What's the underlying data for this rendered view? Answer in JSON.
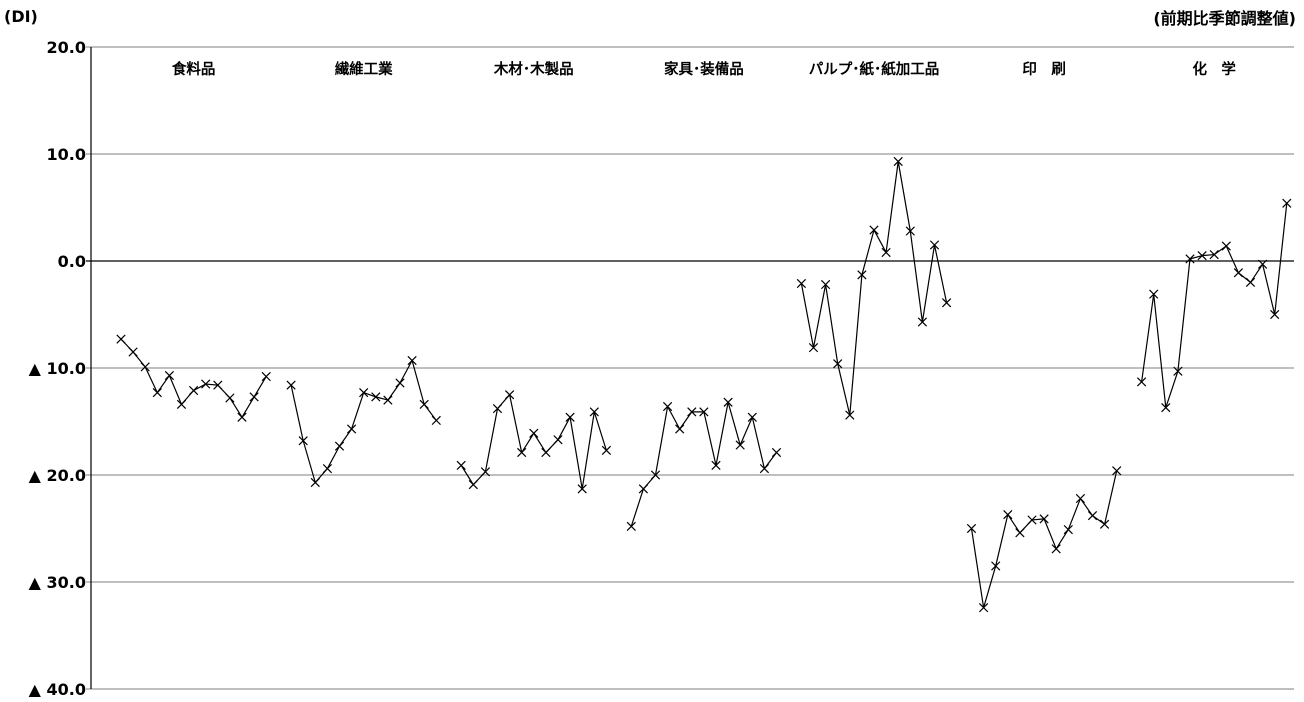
{
  "chart_data": {
    "type": "line",
    "y_unit": "(DI)",
    "note": "(前期比季節調整値)",
    "ylim": [
      -40,
      20
    ],
    "yticks": [
      {
        "value": 20,
        "label": "20.0"
      },
      {
        "value": 10,
        "label": "10.0"
      },
      {
        "value": 0,
        "label": "0.0"
      },
      {
        "value": -10,
        "label": "▲ 10.0"
      },
      {
        "value": -20,
        "label": "▲ 20.0"
      },
      {
        "value": -30,
        "label": "▲ 30.0"
      },
      {
        "value": -40,
        "label": "▲ 40.0"
      }
    ],
    "grid": true,
    "marker": "x",
    "colors": {
      "line": "#000000",
      "grid": "#7f7f7f",
      "zero_line": "#000000",
      "text": "#000000"
    },
    "groups": [
      {
        "label": "食料品",
        "values": [
          -7.3,
          -8.5,
          -9.9,
          -12.3,
          -10.7,
          -13.4,
          -12.1,
          -11.5,
          -11.6,
          -12.8,
          -14.6,
          -12.7,
          -10.8
        ]
      },
      {
        "label": "繊維工業",
        "values": [
          -11.6,
          -16.8,
          -20.7,
          -19.4,
          -17.3,
          -15.7,
          -12.3,
          -12.7,
          -13.0,
          -11.4,
          -9.3,
          -13.4,
          -14.9
        ]
      },
      {
        "label": "木材･木製品",
        "values": [
          -19.1,
          -20.9,
          -19.7,
          -13.8,
          -12.5,
          -17.9,
          -16.1,
          -17.9,
          -16.7,
          -14.6,
          -21.3,
          -14.1,
          -17.7
        ]
      },
      {
        "label": "家具･装備品",
        "values": [
          -24.8,
          -21.3,
          -20.0,
          -13.6,
          -15.7,
          -14.1,
          -14.1,
          -19.1,
          -13.2,
          -17.2,
          -14.6,
          -19.4,
          -17.9
        ]
      },
      {
        "label": "パルプ･紙･紙加工品",
        "values": [
          -2.1,
          -8.1,
          -2.2,
          -9.6,
          -14.4,
          -1.3,
          2.9,
          0.8,
          9.3,
          2.8,
          -5.7,
          1.5,
          -3.9
        ]
      },
      {
        "label": "印　刷",
        "values": [
          -25.0,
          -32.4,
          -28.5,
          -23.7,
          -25.4,
          -24.2,
          -24.1,
          -26.9,
          -25.1,
          -22.2,
          -23.8,
          -24.6,
          -19.6
        ]
      },
      {
        "label": "化　学",
        "values": [
          -11.3,
          -3.1,
          -13.7,
          -10.3,
          0.2,
          0.5,
          0.6,
          1.4,
          -1.1,
          -2.0,
          -0.3,
          -5.0,
          5.4
        ]
      }
    ]
  }
}
